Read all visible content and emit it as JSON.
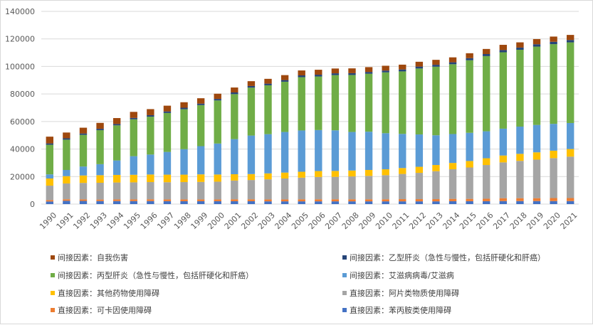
{
  "chart_data": {
    "type": "bar",
    "stacked": true,
    "categories": [
      "1990",
      "1991",
      "1992",
      "1993",
      "1994",
      "1995",
      "1996",
      "1997",
      "1998",
      "1999",
      "2000",
      "2001",
      "2002",
      "2003",
      "2004",
      "2005",
      "2006",
      "2007",
      "2008",
      "2009",
      "2010",
      "2011",
      "2012",
      "2013",
      "2014",
      "2015",
      "2016",
      "2017",
      "2018",
      "2019",
      "2020",
      "2021"
    ],
    "ylim": [
      0,
      140000
    ],
    "yticks": [
      0,
      20000,
      40000,
      60000,
      80000,
      100000,
      120000,
      140000
    ],
    "grid": true,
    "legend_position": "bottom",
    "series": [
      {
        "name": "直接因素：苯丙胺类使用障碍",
        "color": "#4472C4",
        "values": [
          1900,
          2400,
          2300,
          2200,
          2200,
          2200,
          2200,
          2100,
          2100,
          2100,
          2100,
          2100,
          2100,
          2000,
          2000,
          2000,
          2000,
          2000,
          2000,
          2000,
          2000,
          2000,
          2000,
          2000,
          2100,
          2100,
          2100,
          2200,
          2200,
          2200,
          2200,
          2200
        ]
      },
      {
        "name": "直接因素：可卡因使用障碍",
        "color": "#ED7D31",
        "values": [
          1000,
          1100,
          1100,
          1100,
          1200,
          1200,
          1300,
          1300,
          1300,
          1300,
          1300,
          1400,
          1400,
          1400,
          1400,
          1500,
          1500,
          1500,
          1500,
          1500,
          1500,
          1600,
          1600,
          1600,
          1700,
          1700,
          1800,
          2100,
          2100,
          2100,
          2200,
          2200
        ]
      },
      {
        "name": "直接因素：阿片类物质使用障碍",
        "color": "#A5A5A5",
        "values": [
          10500,
          11500,
          12000,
          12200,
          12300,
          12400,
          12500,
          12500,
          12600,
          12700,
          12900,
          13600,
          14000,
          14600,
          15200,
          15700,
          16200,
          16300,
          16600,
          17000,
          17500,
          18300,
          19100,
          20300,
          21500,
          22800,
          24500,
          26000,
          27100,
          28000,
          29000,
          30100
        ]
      },
      {
        "name": "直接因素：其他药物使用障碍",
        "color": "#FFC000",
        "values": [
          5200,
          5300,
          5400,
          5500,
          5500,
          5500,
          5500,
          5500,
          5400,
          5500,
          5200,
          4600,
          4300,
          4300,
          4300,
          4300,
          4300,
          4300,
          4300,
          4300,
          4300,
          4300,
          4400,
          4500,
          4600,
          4700,
          4900,
          5000,
          5100,
          5300,
          5400,
          5500
        ]
      },
      {
        "name": "间接因素：艾滋病病毒/艾滋病",
        "color": "#5B9BD5",
        "values": [
          3000,
          4500,
          6500,
          8000,
          10500,
          13500,
          14500,
          16500,
          18500,
          20500,
          22500,
          25500,
          28000,
          28500,
          29500,
          30000,
          29800,
          29500,
          28000,
          27800,
          26200,
          24800,
          23500,
          21600,
          21000,
          20500,
          19600,
          19500,
          19800,
          19900,
          19500,
          18900
        ]
      },
      {
        "name": "间接因素：丙型肝炎（急性与慢性，包括肝硬化和肝癌）",
        "color": "#70AD47",
        "values": [
          21500,
          22000,
          23000,
          24700,
          25500,
          26800,
          27500,
          28300,
          29000,
          29800,
          31300,
          32700,
          34800,
          35500,
          36500,
          38700,
          38900,
          40100,
          41400,
          42100,
          44200,
          45400,
          47900,
          49800,
          50700,
          52700,
          54600,
          55500,
          55800,
          56900,
          57900,
          58600
        ]
      },
      {
        "name": "间接因素：乙型肝炎（急性与慢性，包括肝硬化和肝癌）",
        "color": "#264478",
        "values": [
          1000,
          1000,
          1000,
          1000,
          1000,
          1000,
          1100,
          1100,
          1100,
          1100,
          1100,
          1200,
          1200,
          1200,
          1200,
          1300,
          1300,
          1300,
          1300,
          1300,
          1300,
          1400,
          1400,
          1400,
          1400,
          1500,
          1500,
          1600,
          1600,
          1700,
          1700,
          1700
        ]
      },
      {
        "name": "间接因素：自我伤害",
        "color": "#9E480E",
        "values": [
          4900,
          4200,
          4200,
          4300,
          4300,
          4400,
          4400,
          4200,
          4000,
          3900,
          3800,
          3600,
          3500,
          3500,
          3600,
          3600,
          3600,
          3500,
          3500,
          3500,
          3500,
          3500,
          3500,
          3600,
          3600,
          3600,
          3700,
          3800,
          3800,
          3800,
          3800,
          3700
        ]
      }
    ]
  },
  "legend_order": [
    7,
    6,
    5,
    4,
    3,
    2,
    1,
    0
  ]
}
